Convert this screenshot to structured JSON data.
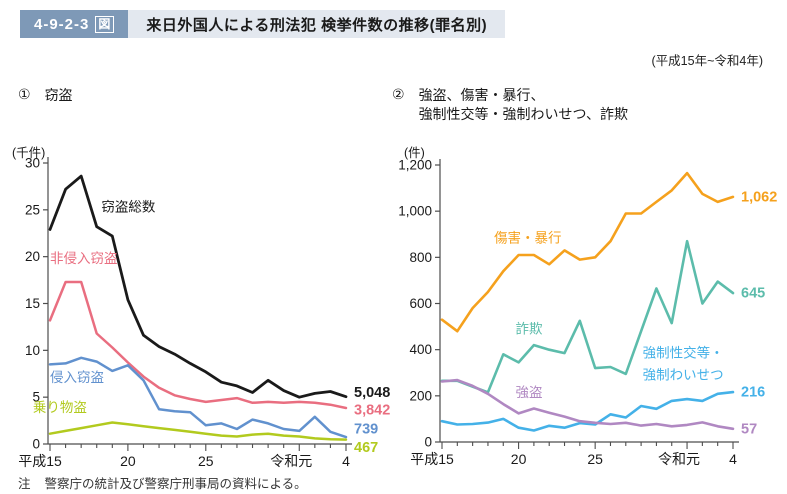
{
  "header": {
    "figure_number": "4-9-2-3",
    "figure_suffix": "図",
    "title": "来日外国人による刑法犯 検挙件数の推移(罪名別)",
    "period": "(平成15年~令和4年)"
  },
  "note": {
    "prefix": "注",
    "text": "警察庁の統計及び警察庁刑事局の資料による。"
  },
  "colors": {
    "badge_bg": "#7e99b7",
    "title_strip_bg": "#e3e8ef",
    "axis": "#4d4d4d",
    "total_theft": "#1a1a1a",
    "non_intrusion_theft": "#e96e80",
    "intrusion_theft": "#6191ce",
    "vehicle_theft": "#b2ca1e",
    "assault": "#f5a11d",
    "fraud": "#5cbcab",
    "sexual_offense": "#44b1e8",
    "robbery": "#b088c2"
  },
  "chart_data": [
    {
      "type": "line",
      "title_number": "①",
      "title_lines": [
        "窃盗"
      ],
      "unit_label": "(千件)",
      "ylabel": "千件",
      "ylim": [
        0,
        30
      ],
      "ytick_step": 5,
      "x": [
        "H15",
        "H16",
        "H17",
        "H18",
        "H19",
        "H20",
        "H21",
        "H22",
        "H23",
        "H24",
        "H25",
        "H26",
        "H27",
        "H28",
        "H29",
        "H30",
        "R1",
        "R2",
        "R3",
        "R4"
      ],
      "x_tick_labels": [
        {
          "index": 0,
          "label": "平成15",
          "shift": -10
        },
        {
          "index": 5,
          "label": "20",
          "shift": 0
        },
        {
          "index": 10,
          "label": "25",
          "shift": 0
        },
        {
          "index": 16,
          "label": "令和元",
          "shift": -8
        },
        {
          "index": 19,
          "label": "4",
          "shift": 0
        }
      ],
      "series": [
        {
          "name": "窃盗総数",
          "color": "#1a1a1a",
          "width": 2.8,
          "values": [
            22.9,
            27.2,
            28.6,
            23.2,
            22.2,
            15.4,
            11.6,
            10.4,
            9.6,
            8.6,
            7.7,
            6.6,
            6.2,
            5.5,
            6.8,
            5.7,
            5.0,
            5.4,
            5.6,
            5.048
          ],
          "end_label": "5,048",
          "end_label_dy": -4,
          "end_label_bold": true,
          "label_at": {
            "xi": 3.3,
            "v": 24.8
          }
        },
        {
          "name": "非侵入窃盗",
          "color": "#e96e80",
          "width": 2.5,
          "values": [
            13.2,
            17.3,
            17.3,
            11.8,
            10.3,
            8.7,
            7.2,
            6.0,
            5.2,
            4.8,
            4.5,
            4.7,
            4.9,
            4.4,
            4.5,
            4.4,
            4.5,
            4.4,
            4.2,
            3.842
          ],
          "end_label": "3,842",
          "end_label_dy": 2,
          "end_label_bold": true,
          "label_at": {
            "xi": 0.0,
            "v": 19.3
          }
        },
        {
          "name": "侵入窃盗",
          "color": "#6191ce",
          "width": 2.5,
          "values": [
            8.5,
            8.6,
            9.2,
            8.8,
            7.8,
            8.4,
            6.8,
            3.7,
            3.5,
            3.4,
            2.0,
            2.2,
            1.6,
            2.6,
            2.2,
            1.6,
            1.4,
            2.9,
            1.3,
            0.739
          ],
          "end_label": "739",
          "end_label_dy": -8,
          "end_label_bold": true,
          "label_at": {
            "xi": 0.0,
            "v": 6.6
          }
        },
        {
          "name": "乗り物盗",
          "color": "#b2ca1e",
          "width": 2.5,
          "values": [
            1.1,
            1.4,
            1.7,
            2.0,
            2.3,
            2.1,
            1.9,
            1.7,
            1.5,
            1.3,
            1.1,
            0.9,
            0.8,
            1.0,
            1.1,
            0.9,
            0.8,
            0.6,
            0.5,
            0.467
          ],
          "end_label": "467",
          "end_label_dy": 8,
          "end_label_bold": true,
          "label_at": {
            "xi": -1.1,
            "v": 3.4
          }
        }
      ]
    },
    {
      "type": "line",
      "title_number": "②",
      "title_lines": [
        "強盗、傷害・暴行、",
        "強制性交等・強制わいせつ、詐欺"
      ],
      "unit_label": "(件)",
      "ylabel": "件",
      "ylim": [
        0,
        1200
      ],
      "ytick_step": 200,
      "x": [
        "H15",
        "H16",
        "H17",
        "H18",
        "H19",
        "H20",
        "H21",
        "H22",
        "H23",
        "H24",
        "H25",
        "H26",
        "H27",
        "H28",
        "H29",
        "H30",
        "R1",
        "R2",
        "R3",
        "R4"
      ],
      "x_tick_labels": [
        {
          "index": 0,
          "label": "平成15",
          "shift": -10
        },
        {
          "index": 5,
          "label": "20",
          "shift": 0
        },
        {
          "index": 10,
          "label": "25",
          "shift": 0
        },
        {
          "index": 16,
          "label": "令和元",
          "shift": -8
        },
        {
          "index": 19,
          "label": "4",
          "shift": 0
        }
      ],
      "series": [
        {
          "name": "傷害・暴行",
          "color": "#f5a11d",
          "width": 2.6,
          "values": [
            530,
            480,
            580,
            650,
            740,
            810,
            810,
            770,
            830,
            790,
            800,
            870,
            990,
            990,
            1040,
            1090,
            1165,
            1075,
            1040,
            1062
          ],
          "end_label": "1,062",
          "end_label_dy": 0,
          "end_label_bold": true,
          "label_at": {
            "xi": 3.4,
            "v": 865
          }
        },
        {
          "name": "詐欺",
          "color": "#5cbcab",
          "width": 2.6,
          "values": [
            265,
            265,
            240,
            215,
            380,
            345,
            420,
            400,
            385,
            525,
            320,
            325,
            295,
            480,
            665,
            515,
            870,
            600,
            695,
            645
          ],
          "end_label": "645",
          "end_label_dy": 0,
          "end_label_bold": true,
          "label_at": {
            "xi": 4.8,
            "v": 470
          }
        },
        {
          "name": "強制性交等・\n強制わいせつ",
          "color": "#44b1e8",
          "width": 2.6,
          "values": [
            90,
            76,
            78,
            84,
            100,
            62,
            50,
            70,
            62,
            82,
            76,
            120,
            106,
            156,
            144,
            178,
            186,
            178,
            209,
            216
          ],
          "end_label": "216",
          "end_label_dy": 0,
          "end_label_bold": true,
          "label_at": {
            "xi": 13.1,
            "v": 365
          }
        },
        {
          "name": "強盗",
          "color": "#b088c2",
          "width": 2.6,
          "values": [
            262,
            268,
            243,
            209,
            164,
            124,
            145,
            127,
            110,
            90,
            83,
            78,
            83,
            71,
            78,
            68,
            74,
            85,
            68,
            57
          ],
          "end_label": "57",
          "end_label_dy": 0,
          "end_label_bold": true,
          "label_at": {
            "xi": 4.8,
            "v": 195
          }
        }
      ]
    }
  ]
}
